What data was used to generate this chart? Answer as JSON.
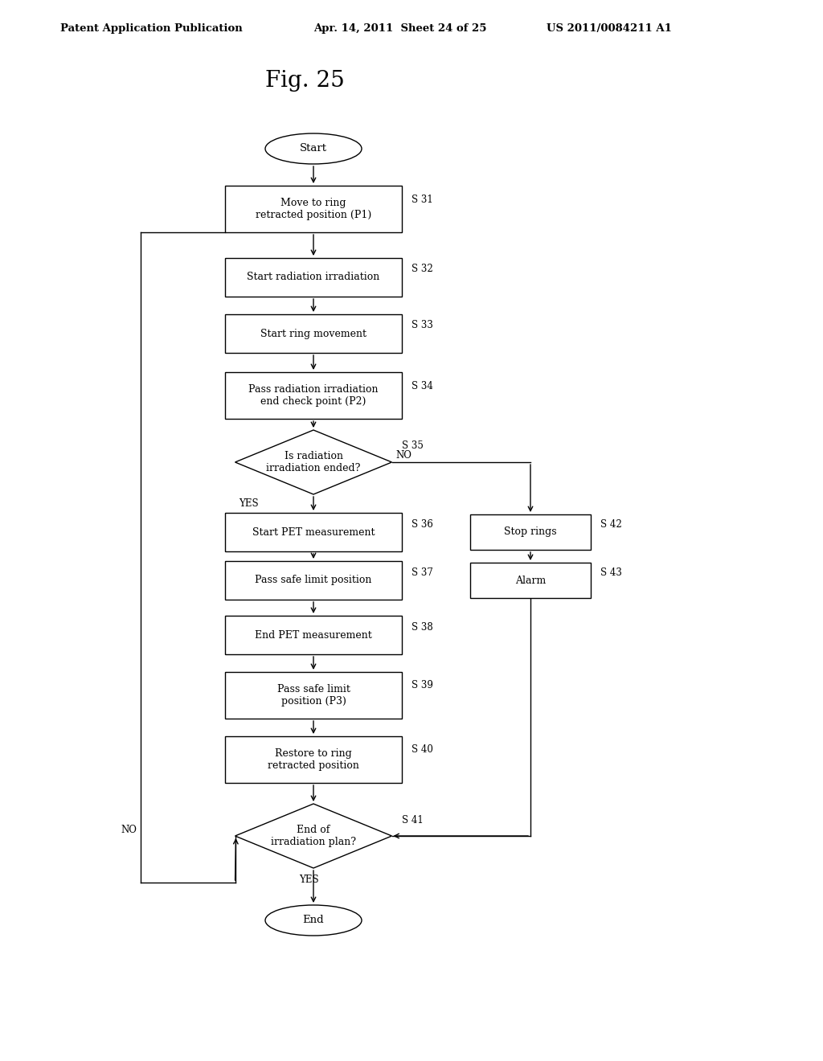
{
  "title": "Fig. 25",
  "header_left": "Patent Application Publication",
  "header_mid": "Apr. 14, 2011  Sheet 24 of 25",
  "header_right": "US 2011/0084211 A1",
  "bg_color": "#ffffff"
}
